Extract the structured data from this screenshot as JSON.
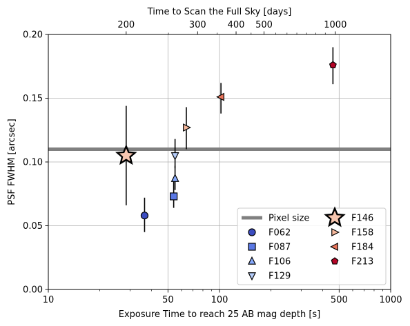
{
  "chart_data": {
    "type": "scatter",
    "title": "",
    "xlabel": "Exposure Time to reach 25 AB mag depth [s]",
    "ylabel": "PSF FWHM [arcsec]",
    "x_scale": "log",
    "xlim": [
      10,
      1000
    ],
    "ylim": [
      0,
      0.2
    ],
    "x_ticks": [
      "10",
      "50",
      "100",
      "500",
      "1000"
    ],
    "y_ticks": [
      "0.00",
      "0.05",
      "0.10",
      "0.15",
      "0.20"
    ],
    "grid": true,
    "top_axis": {
      "label": "Time to Scan the Full Sky [days]",
      "ticks": [
        {
          "days": 200,
          "label": "200",
          "exposure": 28.5
        },
        {
          "days": 300,
          "label": "300",
          "exposure": 74.5
        },
        {
          "days": 400,
          "label": "400",
          "exposure": 125
        },
        {
          "days": 500,
          "label": "500",
          "exposure": 182
        },
        {
          "days": 1000,
          "label": "1000",
          "exposure": 475
        }
      ],
      "minor_ticks_exposure": [
        50.3,
        97,
        153,
        213,
        248,
        283,
        323,
        365,
        415
      ]
    },
    "reference_line": {
      "name": "Pixel size",
      "y": 0.11,
      "color": "#808080"
    },
    "series": [
      {
        "name": "F062",
        "marker": "circle",
        "color": "#3b4cc0",
        "x": 36.5,
        "y": 0.058,
        "err_low": 0.045,
        "err_high": 0.072
      },
      {
        "name": "F087",
        "marker": "square",
        "color": "#5a78e4",
        "x": 54,
        "y": 0.073,
        "err_low": 0.064,
        "err_high": 0.086
      },
      {
        "name": "F106",
        "marker": "triangle-up",
        "color": "#86a9fc",
        "x": 55,
        "y": 0.087,
        "err_low": 0.078,
        "err_high": 0.097
      },
      {
        "name": "F129",
        "marker": "triangle-down",
        "color": "#b5cdfa",
        "x": 55,
        "y": 0.105,
        "err_low": 0.095,
        "err_high": 0.118
      },
      {
        "name": "F146",
        "marker": "star",
        "color": "#f7c6b0",
        "x": 28.5,
        "y": 0.105,
        "err_low": 0.066,
        "err_high": 0.144
      },
      {
        "name": "F158",
        "marker": "triangle-right",
        "color": "#f6b89c",
        "x": 64,
        "y": 0.127,
        "err_low": 0.11,
        "err_high": 0.143
      },
      {
        "name": "F184",
        "marker": "triangle-left",
        "color": "#e7745b",
        "x": 102,
        "y": 0.151,
        "err_low": 0.138,
        "err_high": 0.162
      },
      {
        "name": "F213",
        "marker": "pentagon",
        "color": "#b40426",
        "x": 460,
        "y": 0.176,
        "err_low": 0.161,
        "err_high": 0.19
      }
    ],
    "legend": {
      "placement": "lower-right",
      "columns": [
        [
          "Pixel size",
          "F062",
          "F087",
          "F106",
          "F129"
        ],
        [
          "F146",
          "F158",
          "F184",
          "F213"
        ]
      ]
    }
  }
}
